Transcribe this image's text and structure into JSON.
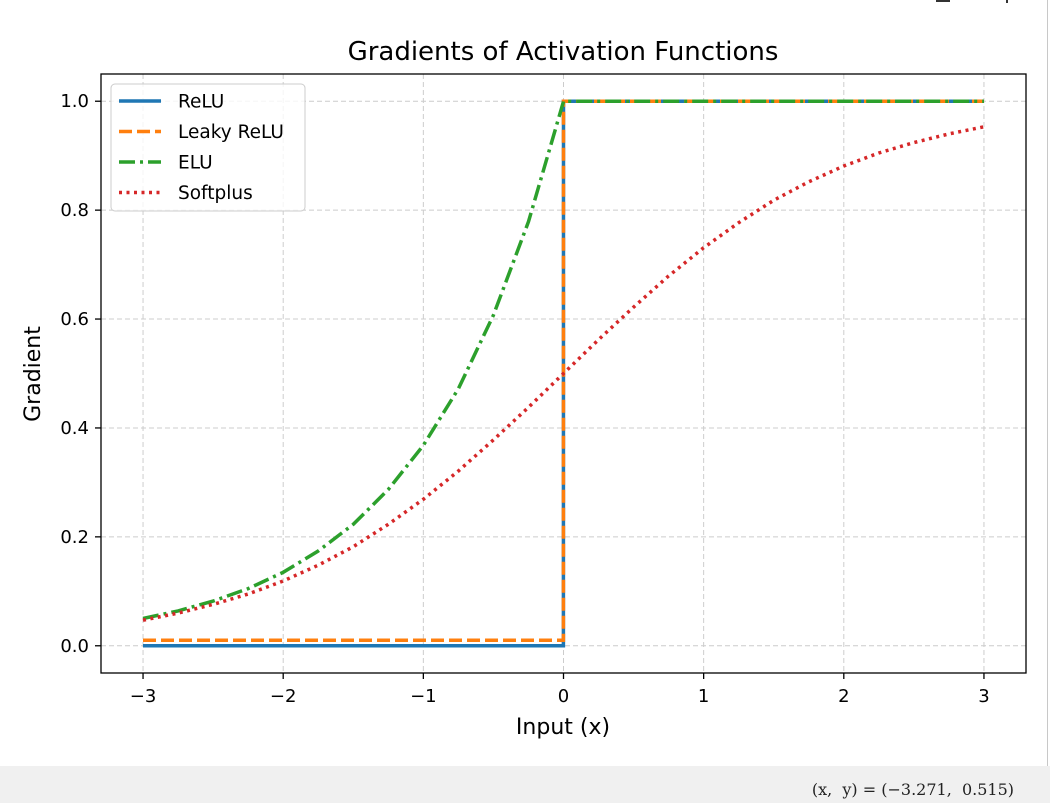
{
  "chart_data": {
    "type": "line",
    "title": "Gradients of Activation Functions",
    "xlabel": "Input (x)",
    "ylabel": "Gradient",
    "xlim": [
      -3.3,
      3.3
    ],
    "ylim": [
      -0.05,
      1.05
    ],
    "xticks": [
      -3,
      -2,
      -1,
      0,
      1,
      2,
      3
    ],
    "xtick_labels": [
      "−3",
      "−2",
      "−1",
      "0",
      "1",
      "2",
      "3"
    ],
    "yticks": [
      0.0,
      0.2,
      0.4,
      0.6,
      0.8,
      1.0
    ],
    "ytick_labels": [
      "0.0",
      "0.2",
      "0.4",
      "0.6",
      "0.8",
      "1.0"
    ],
    "grid": true,
    "legend_position": "top-left",
    "series": [
      {
        "name": "ReLU",
        "color": "#1f77b4",
        "style": "solid",
        "x": [
          -3,
          -0.001,
          0,
          3
        ],
        "y": [
          0,
          0,
          1,
          1
        ]
      },
      {
        "name": "Leaky ReLU",
        "color": "#ff7f0e",
        "style": "dashed",
        "x": [
          -3,
          -0.001,
          0,
          3
        ],
        "y": [
          0.01,
          0.01,
          1,
          1
        ]
      },
      {
        "name": "ELU",
        "color": "#2ca02c",
        "style": "dashdot",
        "x": [
          -3,
          -2.75,
          -2.5,
          -2.25,
          -2,
          -1.75,
          -1.5,
          -1.25,
          -1,
          -0.75,
          -0.5,
          -0.25,
          -0.001,
          0,
          3
        ],
        "y": [
          0.05,
          0.064,
          0.082,
          0.105,
          0.135,
          0.174,
          0.223,
          0.287,
          0.368,
          0.472,
          0.607,
          0.779,
          0.999,
          1,
          1
        ]
      },
      {
        "name": "Softplus",
        "color": "#d62728",
        "style": "dotted",
        "x": [
          -3,
          -2.75,
          -2.5,
          -2.25,
          -2,
          -1.75,
          -1.5,
          -1.25,
          -1,
          -0.75,
          -0.5,
          -0.25,
          0,
          0.25,
          0.5,
          0.75,
          1,
          1.25,
          1.5,
          1.75,
          2,
          2.25,
          2.5,
          2.75,
          3
        ],
        "y": [
          0.047,
          0.06,
          0.076,
          0.095,
          0.119,
          0.148,
          0.182,
          0.223,
          0.269,
          0.321,
          0.378,
          0.438,
          0.5,
          0.562,
          0.622,
          0.679,
          0.731,
          0.777,
          0.818,
          0.852,
          0.881,
          0.905,
          0.924,
          0.94,
          0.953
        ]
      }
    ]
  },
  "statusbar": {
    "coordinates": "(x,  y) = (−3.271,  0.515)"
  }
}
